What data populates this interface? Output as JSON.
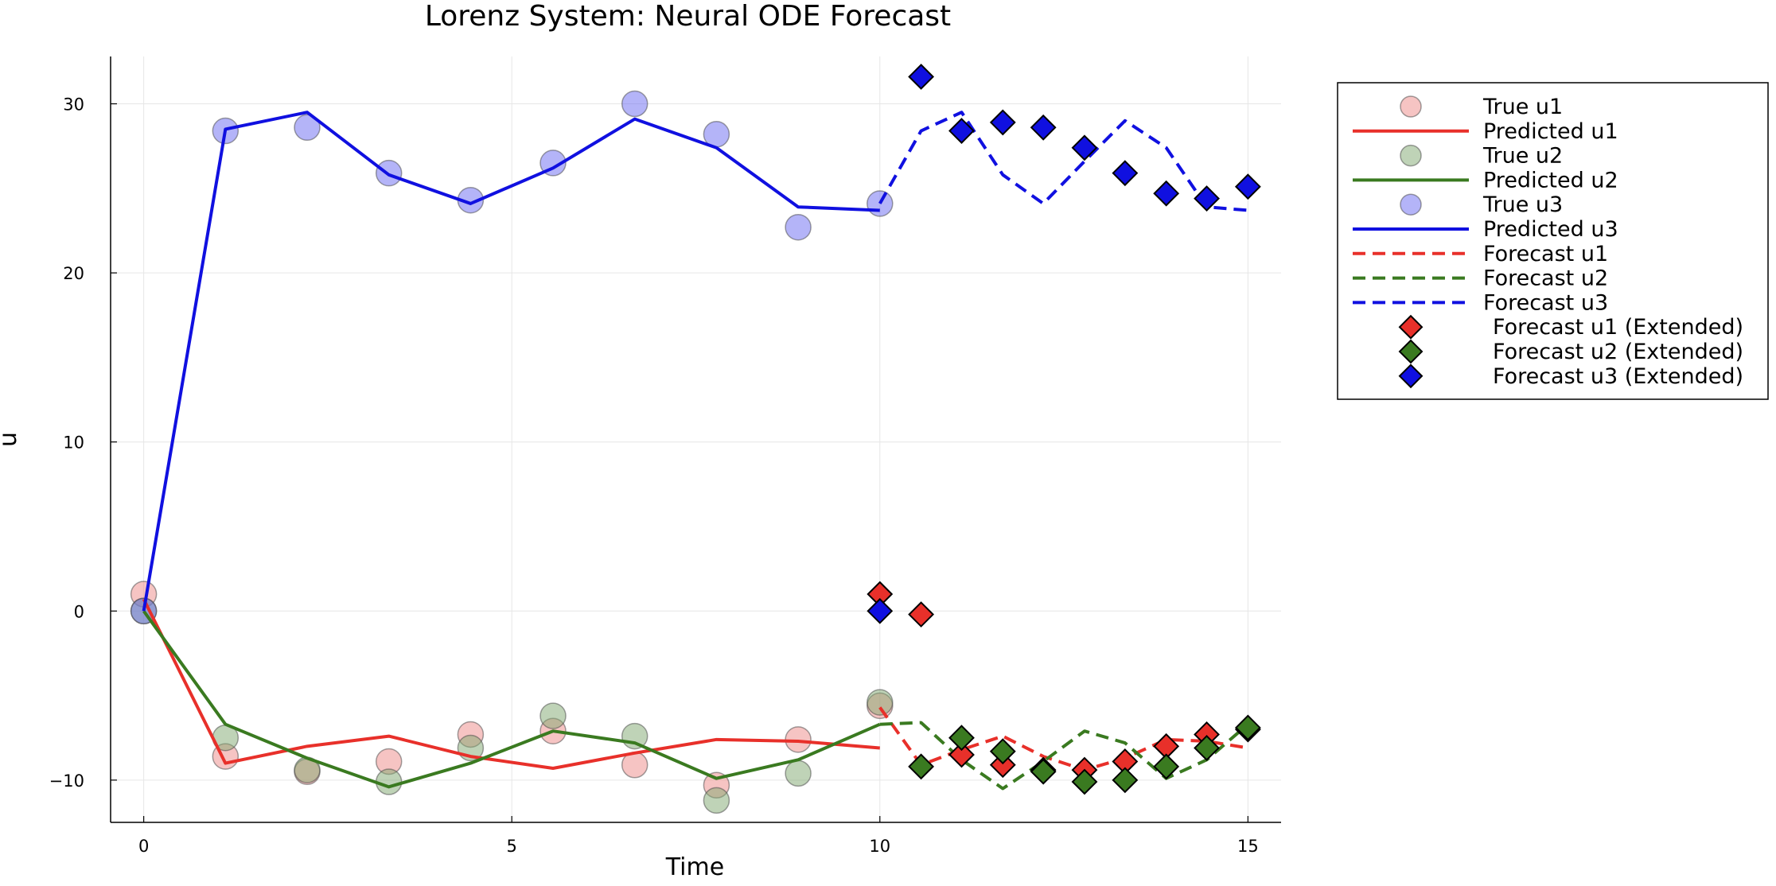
{
  "chart_data": {
    "type": "line",
    "title": "Lorenz System: Neural ODE Forecast",
    "xlabel": "Time",
    "ylabel": "u",
    "xlim": [
      -0.45,
      15.45
    ],
    "ylim": [
      -12.5,
      32.8
    ],
    "xticks": [
      0,
      5,
      10,
      15
    ],
    "xtick_labels": [
      "0",
      "5",
      "10",
      "15"
    ],
    "yticks": [
      -10,
      0,
      10,
      20,
      30
    ],
    "ytick_labels": [
      "−10",
      "0",
      "10",
      "20",
      "30"
    ],
    "grid": true,
    "legend_position": "outer-top-right",
    "series": [
      {
        "name": "True u1",
        "kind": "markers",
        "marker": "circle",
        "color": "#ee8a88",
        "alpha": 0.5,
        "x": [
          0,
          1.11,
          2.22,
          3.33,
          4.44,
          5.56,
          6.67,
          7.78,
          8.89,
          10
        ],
        "y": [
          1.0,
          -8.6,
          -9.5,
          -8.9,
          -7.3,
          -7.1,
          -9.1,
          -10.3,
          -7.6,
          -5.6
        ]
      },
      {
        "name": "Predicted u1",
        "kind": "line",
        "dash": "solid",
        "color": "#e8302a",
        "x": [
          0,
          1.11,
          2.22,
          3.33,
          4.44,
          5.56,
          6.67,
          7.78,
          8.89,
          10
        ],
        "y": [
          0.7,
          -9.0,
          -8.0,
          -7.4,
          -8.6,
          -9.3,
          -8.4,
          -7.6,
          -7.7,
          -8.1
        ]
      },
      {
        "name": "True u2",
        "kind": "markers",
        "marker": "circle",
        "color": "#7fa86f",
        "alpha": 0.5,
        "x": [
          0,
          1.11,
          2.22,
          3.33,
          4.44,
          5.56,
          6.67,
          7.78,
          8.89,
          10
        ],
        "y": [
          0.0,
          -7.5,
          -9.4,
          -10.1,
          -8.1,
          -6.2,
          -7.4,
          -11.2,
          -9.6,
          -5.4
        ]
      },
      {
        "name": "Predicted u2",
        "kind": "line",
        "dash": "solid",
        "color": "#3a7a20",
        "x": [
          0,
          1.11,
          2.22,
          3.33,
          4.44,
          5.56,
          6.67,
          7.78,
          8.89,
          10
        ],
        "y": [
          0.0,
          -6.7,
          -8.7,
          -10.4,
          -9.0,
          -7.1,
          -7.8,
          -9.9,
          -8.8,
          -6.7
        ]
      },
      {
        "name": "True u3",
        "kind": "markers",
        "marker": "circle",
        "color": "#6a6af2",
        "alpha": 0.5,
        "x": [
          0,
          1.11,
          2.22,
          3.33,
          4.44,
          5.56,
          6.67,
          7.78,
          8.89,
          10
        ],
        "y": [
          0.0,
          28.4,
          28.6,
          25.9,
          24.3,
          26.5,
          30.0,
          28.2,
          22.7,
          24.1
        ]
      },
      {
        "name": "Predicted u3",
        "kind": "line",
        "dash": "solid",
        "color": "#1010e0",
        "x": [
          0,
          1.11,
          2.22,
          3.33,
          4.44,
          5.56,
          6.67,
          7.78,
          8.89,
          10
        ],
        "y": [
          0.0,
          28.5,
          29.5,
          25.8,
          24.1,
          26.2,
          29.1,
          27.4,
          23.9,
          23.7
        ]
      },
      {
        "name": "Forecast u1",
        "kind": "line",
        "dash": "dashed",
        "color": "#e8302a",
        "x": [
          10,
          10.56,
          11.11,
          11.67,
          12.22,
          12.78,
          13.33,
          13.89,
          14.44,
          15
        ],
        "y": [
          -5.7,
          -9.1,
          -8.2,
          -7.4,
          -8.6,
          -9.4,
          -8.7,
          -7.6,
          -7.7,
          -8.1
        ]
      },
      {
        "name": "Forecast u2",
        "kind": "line",
        "dash": "dashed",
        "color": "#3a7a20",
        "x": [
          10,
          10.56,
          11.11,
          11.67,
          12.22,
          12.78,
          13.33,
          13.89,
          14.44,
          15
        ],
        "y": [
          -6.7,
          -6.6,
          -8.8,
          -10.5,
          -8.9,
          -7.1,
          -7.8,
          -9.9,
          -8.8,
          -6.7
        ]
      },
      {
        "name": "Forecast u3",
        "kind": "line",
        "dash": "dashed",
        "color": "#1010e0",
        "x": [
          10,
          10.56,
          11.11,
          11.67,
          12.22,
          12.78,
          13.33,
          13.89,
          14.44,
          15
        ],
        "y": [
          24.1,
          28.4,
          29.5,
          25.8,
          24.1,
          26.6,
          29.0,
          27.4,
          23.9,
          23.7
        ]
      },
      {
        "name": "Forecast u1 (Extended)",
        "kind": "markers",
        "marker": "diamond",
        "color": "#e8302a",
        "alpha": 1,
        "x": [
          10,
          10.56,
          11.11,
          11.67,
          12.22,
          12.78,
          13.33,
          13.89,
          14.44,
          15
        ],
        "y": [
          1.0,
          -0.2,
          -8.5,
          -9.1,
          -9.4,
          -9.4,
          -8.9,
          -8.0,
          -7.3,
          -7.0
        ]
      },
      {
        "name": "Forecast u2 (Extended)",
        "kind": "markers",
        "marker": "diamond",
        "color": "#3a7a20",
        "alpha": 1,
        "x": [
          10.56,
          11.11,
          11.67,
          12.22,
          12.78,
          13.33,
          13.89,
          14.44,
          15
        ],
        "y": [
          -9.2,
          -7.5,
          -8.3,
          -9.5,
          -10.1,
          -10.0,
          -9.2,
          -8.1,
          -6.9
        ]
      },
      {
        "name": "Forecast u3 (Extended)",
        "kind": "markers",
        "marker": "diamond",
        "color": "#1010e0",
        "alpha": 1,
        "x": [
          10,
          10.56,
          11.11,
          11.67,
          12.22,
          12.78,
          13.33,
          13.89,
          14.44,
          15
        ],
        "y": [
          0.0,
          31.6,
          28.4,
          28.9,
          28.6,
          27.4,
          25.9,
          24.7,
          24.4,
          25.1
        ]
      }
    ]
  }
}
